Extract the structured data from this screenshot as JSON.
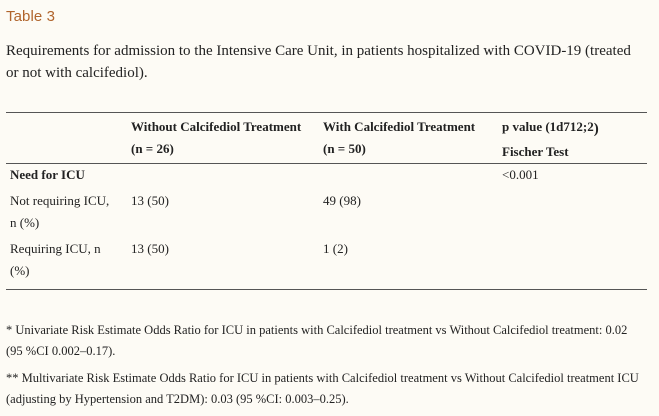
{
  "table_label": "Table 3",
  "caption": "Requirements for admission to the Intensive Care Unit, in patients hospitalized with COVID-19 (treated or not with calcifediol).",
  "columns": {
    "col1_title": "Without Calcifediol Treatment",
    "col1_n": "(n = 26)",
    "col2_title": "With Calcifediol Treatment",
    "col2_n": "(n = 50)",
    "col3_title": "p value (1d712;2",
    "col3_paren": ")",
    "col3_sub": "Fischer Test"
  },
  "rows": [
    {
      "label_line1": "Need for ICU",
      "label_line2": "",
      "without": "",
      "with": "",
      "p": "<0.001"
    },
    {
      "label_line1": "Not requiring ICU,",
      "label_line2": "n (%)",
      "without": "13 (50)",
      "with": "49 (98)",
      "p": ""
    },
    {
      "label_line1": "Requiring ICU, n",
      "label_line2": "(%)",
      "without": "13 (50)",
      "with": "1 (2)",
      "p": ""
    }
  ],
  "footnotes": [
    "* Univariate Risk Estimate Odds Ratio for ICU in patients with Calcifediol treatment vs Without Calcifediol treatment: 0.02 (95 %CI 0.002–0.17).",
    "** Multivariate Risk Estimate Odds Ratio for ICU in patients with Calcifediol treatment vs Without Calcifediol treatment ICU (adjusting by Hypertension and T2DM): 0.03 (95 %CI: 0.003–0.25)."
  ]
}
